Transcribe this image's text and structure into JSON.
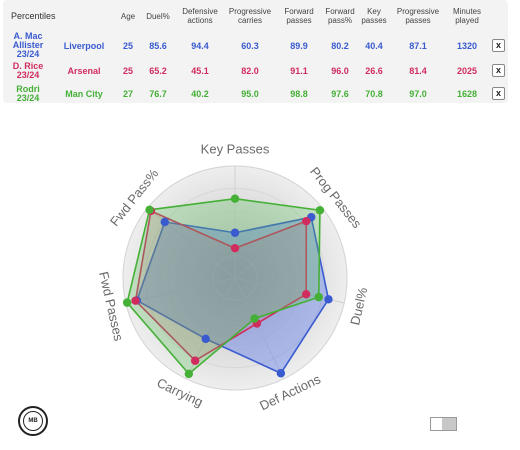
{
  "table": {
    "headers": [
      "Percentiles",
      "Age",
      "Duel%",
      "Defensive actions",
      "Progressive carries",
      "Forward passes",
      "Forward pass%",
      "Key passes",
      "Progressive passes",
      "Minutes played"
    ],
    "remove_label": "x",
    "rows": [
      {
        "player": "A. Mac Allister",
        "season": "23/24",
        "team": "Liverpool",
        "color": "#3a5bd0",
        "values": [
          "25",
          "85.6",
          "94.4",
          "60.3",
          "89.9",
          "80.2",
          "40.4",
          "87.1",
          "1320"
        ]
      },
      {
        "player": "D. Rice",
        "season": "23/24",
        "team": "Arsenal",
        "color": "#d12c5e",
        "values": [
          "25",
          "65.2",
          "45.1",
          "82.0",
          "91.1",
          "96.0",
          "26.6",
          "81.4",
          "2025"
        ]
      },
      {
        "player": "Rodri",
        "season": "23/24",
        "team": "Man City",
        "color": "#44b036",
        "values": [
          "27",
          "76.7",
          "40.2",
          "95.0",
          "98.8",
          "97.6",
          "70.8",
          "97.0",
          "1628"
        ]
      }
    ]
  },
  "logo_text": "MB",
  "chart_data": {
    "type": "radar",
    "axes": [
      "Key Passes",
      "Prog Passes",
      "Duel%",
      "Def Actions",
      "Carrying",
      "Fwd Passes",
      "Fwd Pass%"
    ],
    "range": [
      0,
      100
    ],
    "series": [
      {
        "name": "A. Mac Allister",
        "color": "#3a5bd0",
        "fill": "rgba(80,110,235,0.38)",
        "values": [
          40.4,
          87.1,
          85.6,
          94.4,
          60.3,
          89.9,
          80.2
        ]
      },
      {
        "name": "D. Rice",
        "color": "#d12c5e",
        "fill": "rgba(210,70,110,0.18)",
        "values": [
          26.6,
          81.4,
          65.2,
          45.1,
          82.0,
          91.1,
          96.0
        ]
      },
      {
        "name": "Rodri",
        "color": "#44b036",
        "fill": "rgba(90,190,90,0.30)",
        "values": [
          70.8,
          97.0,
          76.7,
          40.2,
          95.0,
          98.8,
          97.6
        ]
      }
    ]
  }
}
